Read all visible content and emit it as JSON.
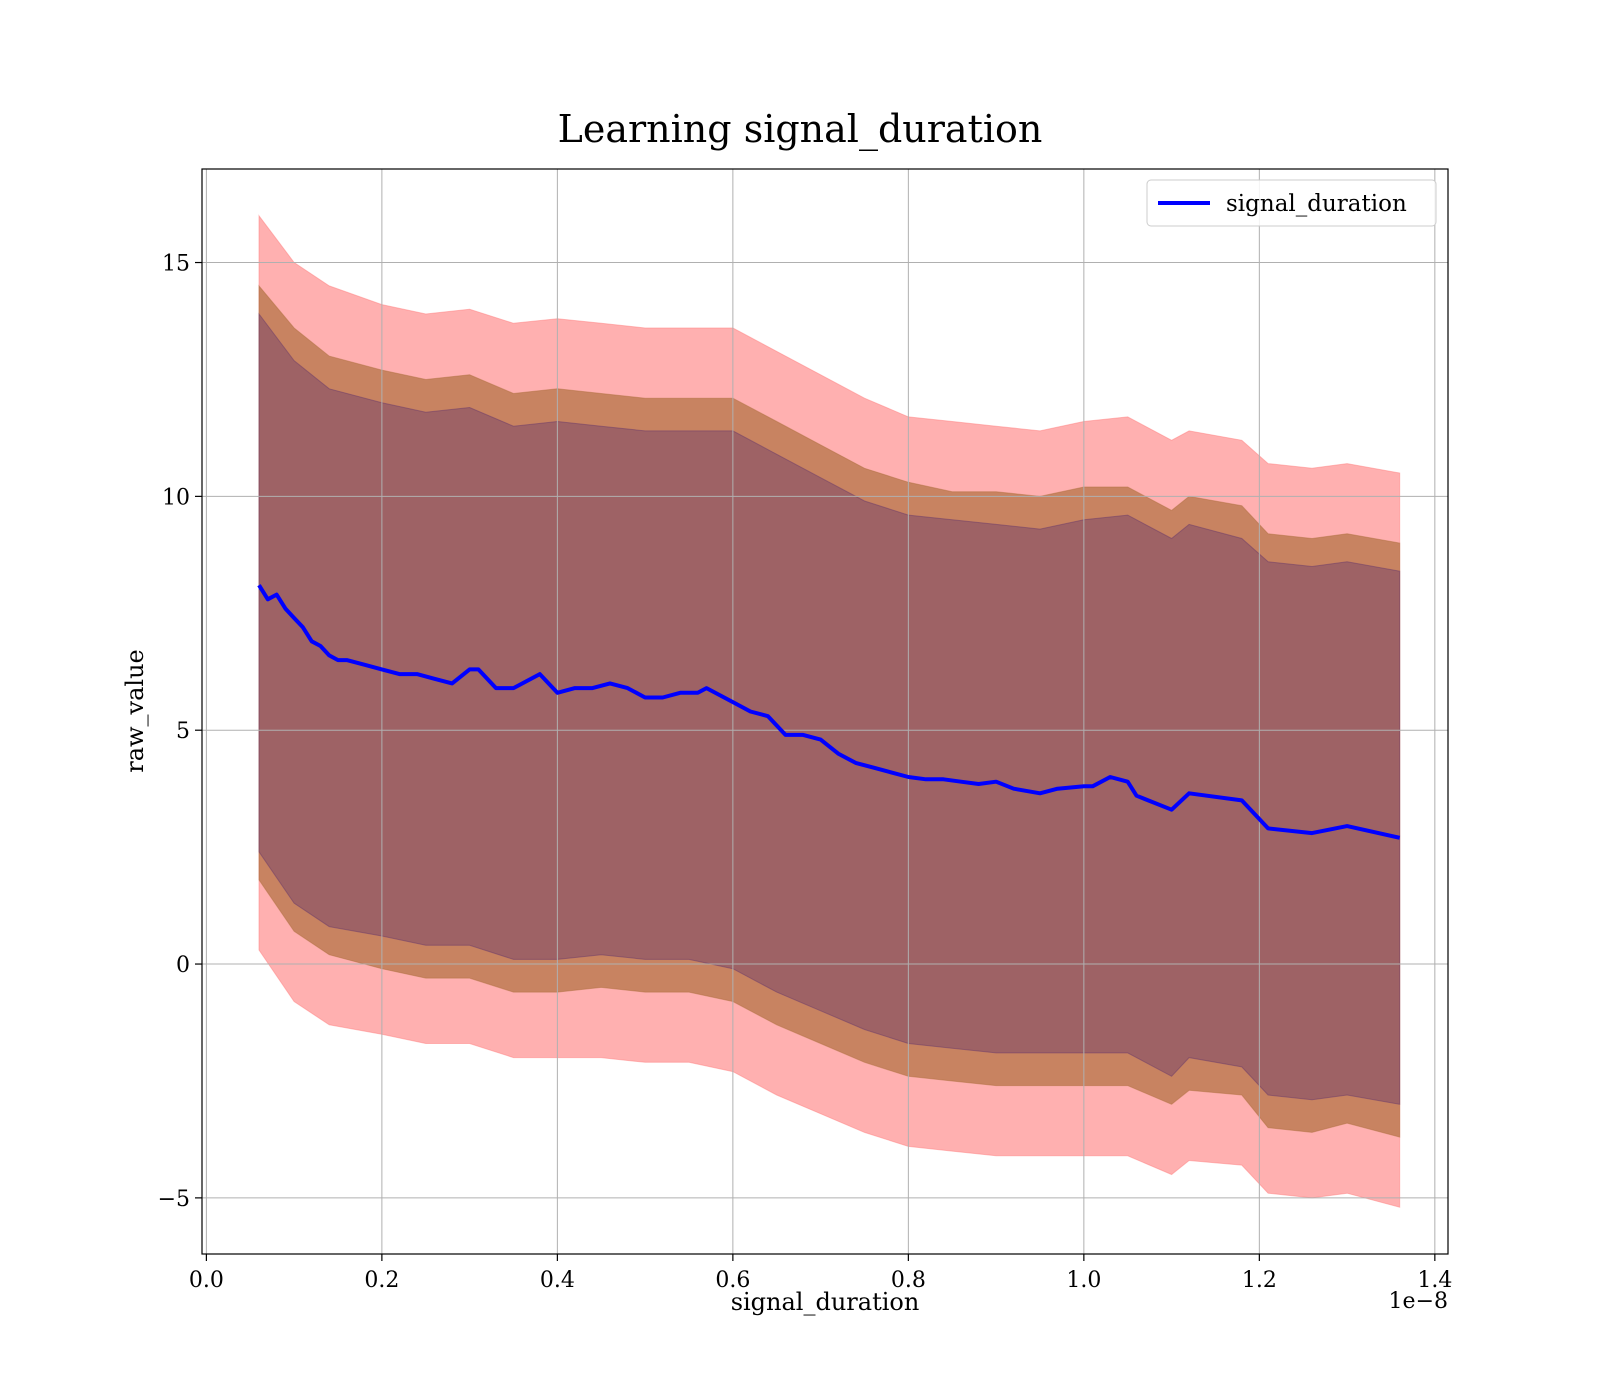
{
  "chart_data": {
    "type": "line",
    "title": "Learning signal_duration",
    "xlabel": "signal_duration",
    "ylabel": "raw_value",
    "x_offset_label": "1e−8",
    "xlim": [
      -0.005,
      1.415
    ],
    "ylim": [
      -6.2,
      17.0
    ],
    "x_ticks": [
      0.0,
      0.2,
      0.4,
      0.6,
      0.8,
      1.0,
      1.2,
      1.4
    ],
    "x_tick_labels": [
      "0.0",
      "0.2",
      "0.4",
      "0.6",
      "0.8",
      "1.0",
      "1.2",
      "1.4"
    ],
    "y_ticks": [
      -5,
      0,
      5,
      10,
      15
    ],
    "y_tick_labels": [
      "−5",
      "0",
      "5",
      "10",
      "15"
    ],
    "grid": true,
    "legend_position": "top-right",
    "series": [
      {
        "name": "signal_duration",
        "color": "#0000ff",
        "x": [
          0.06,
          0.07,
          0.08,
          0.09,
          0.1,
          0.11,
          0.12,
          0.13,
          0.14,
          0.15,
          0.16,
          0.18,
          0.2,
          0.22,
          0.24,
          0.26,
          0.28,
          0.3,
          0.31,
          0.33,
          0.35,
          0.38,
          0.4,
          0.42,
          0.44,
          0.46,
          0.48,
          0.5,
          0.52,
          0.54,
          0.56,
          0.57,
          0.6,
          0.62,
          0.64,
          0.66,
          0.68,
          0.7,
          0.72,
          0.74,
          0.76,
          0.78,
          0.8,
          0.82,
          0.84,
          0.86,
          0.88,
          0.9,
          0.92,
          0.95,
          0.97,
          1.0,
          1.01,
          1.03,
          1.05,
          1.06,
          1.1,
          1.12,
          1.18,
          1.21,
          1.26,
          1.3,
          1.36
        ],
        "values": [
          8.1,
          7.8,
          7.9,
          7.6,
          7.4,
          7.2,
          6.9,
          6.8,
          6.6,
          6.5,
          6.5,
          6.4,
          6.3,
          6.2,
          6.2,
          6.1,
          6.0,
          6.3,
          6.3,
          5.9,
          5.9,
          6.2,
          5.8,
          5.9,
          5.9,
          6.0,
          5.9,
          5.7,
          5.7,
          5.8,
          5.8,
          5.9,
          5.6,
          5.4,
          5.3,
          4.9,
          4.9,
          4.8,
          4.5,
          4.3,
          4.2,
          4.1,
          4.0,
          3.95,
          3.95,
          3.9,
          3.85,
          3.9,
          3.75,
          3.65,
          3.75,
          3.8,
          3.8,
          4.0,
          3.9,
          3.6,
          3.3,
          3.65,
          3.5,
          2.9,
          2.8,
          2.95,
          2.7
        ]
      }
    ],
    "bands": [
      {
        "color": "#ff8080",
        "opacity": 0.62,
        "x": [
          0.06,
          0.1,
          0.14,
          0.2,
          0.25,
          0.3,
          0.35,
          0.4,
          0.45,
          0.5,
          0.55,
          0.6,
          0.65,
          0.7,
          0.75,
          0.8,
          0.85,
          0.9,
          0.95,
          1.0,
          1.05,
          1.1,
          1.12,
          1.18,
          1.21,
          1.26,
          1.3,
          1.36
        ],
        "upper": [
          16.0,
          15.0,
          14.5,
          14.1,
          13.9,
          14.0,
          13.7,
          13.8,
          13.7,
          13.6,
          13.6,
          13.6,
          13.1,
          12.6,
          12.1,
          11.7,
          11.6,
          11.5,
          11.4,
          11.6,
          11.7,
          11.2,
          11.4,
          11.2,
          10.7,
          10.6,
          10.7,
          10.5
        ],
        "lower": [
          0.3,
          -0.8,
          -1.3,
          -1.5,
          -1.7,
          -1.7,
          -2.0,
          -2.0,
          -2.0,
          -2.1,
          -2.1,
          -2.3,
          -2.8,
          -3.2,
          -3.6,
          -3.9,
          -4.0,
          -4.1,
          -4.1,
          -4.1,
          -4.1,
          -4.5,
          -4.2,
          -4.3,
          -4.9,
          -5.0,
          -4.9,
          -5.2
        ]
      },
      {
        "color": "#b07040",
        "opacity": 0.7,
        "x": [
          0.06,
          0.1,
          0.14,
          0.2,
          0.25,
          0.3,
          0.35,
          0.4,
          0.45,
          0.5,
          0.55,
          0.6,
          0.65,
          0.7,
          0.75,
          0.8,
          0.85,
          0.9,
          0.95,
          1.0,
          1.05,
          1.1,
          1.12,
          1.18,
          1.21,
          1.26,
          1.3,
          1.36
        ],
        "upper": [
          14.5,
          13.6,
          13.0,
          12.7,
          12.5,
          12.6,
          12.2,
          12.3,
          12.2,
          12.1,
          12.1,
          12.1,
          11.6,
          11.1,
          10.6,
          10.3,
          10.1,
          10.1,
          10.0,
          10.2,
          10.2,
          9.7,
          10.0,
          9.8,
          9.2,
          9.1,
          9.2,
          9.0
        ],
        "lower": [
          1.8,
          0.7,
          0.2,
          -0.1,
          -0.3,
          -0.3,
          -0.6,
          -0.6,
          -0.5,
          -0.6,
          -0.6,
          -0.8,
          -1.3,
          -1.7,
          -2.1,
          -2.4,
          -2.5,
          -2.6,
          -2.6,
          -2.6,
          -2.6,
          -3.0,
          -2.7,
          -2.8,
          -3.5,
          -3.6,
          -3.4,
          -3.7
        ]
      },
      {
        "color": "#6a3a6a",
        "opacity": 0.45,
        "x": [
          0.06,
          0.1,
          0.14,
          0.2,
          0.25,
          0.3,
          0.35,
          0.4,
          0.45,
          0.5,
          0.55,
          0.6,
          0.65,
          0.7,
          0.75,
          0.8,
          0.85,
          0.9,
          0.95,
          1.0,
          1.05,
          1.1,
          1.12,
          1.18,
          1.21,
          1.26,
          1.3,
          1.36
        ],
        "upper": [
          13.9,
          12.9,
          12.3,
          12.0,
          11.8,
          11.9,
          11.5,
          11.6,
          11.5,
          11.4,
          11.4,
          11.4,
          10.9,
          10.4,
          9.9,
          9.6,
          9.5,
          9.4,
          9.3,
          9.5,
          9.6,
          9.1,
          9.4,
          9.1,
          8.6,
          8.5,
          8.6,
          8.4
        ],
        "lower": [
          2.4,
          1.3,
          0.8,
          0.6,
          0.4,
          0.4,
          0.1,
          0.1,
          0.2,
          0.1,
          0.1,
          -0.1,
          -0.6,
          -1.0,
          -1.4,
          -1.7,
          -1.8,
          -1.9,
          -1.9,
          -1.9,
          -1.9,
          -2.4,
          -2.0,
          -2.2,
          -2.8,
          -2.9,
          -2.8,
          -3.0
        ]
      }
    ]
  }
}
